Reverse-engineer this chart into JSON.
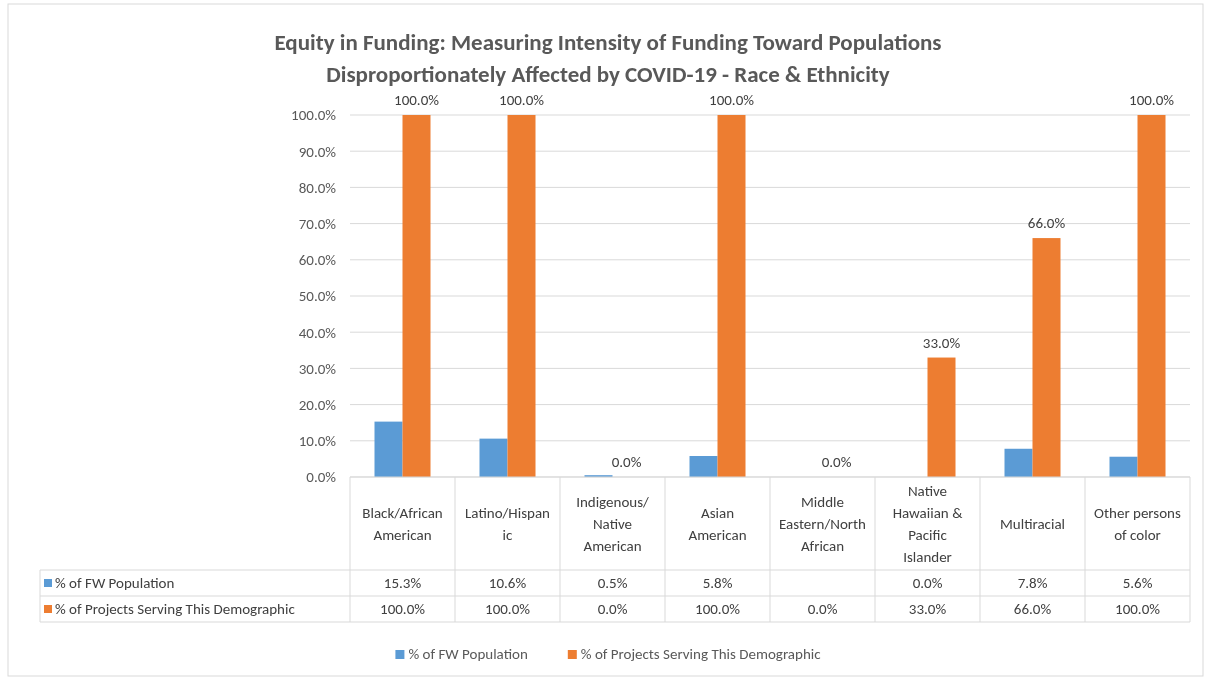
{
  "chart_data": {
    "type": "bar",
    "title": "Equity in Funding: Measuring Intensity of Funding Toward Populations Disproportionately Affected by COVID-19 - Race & Ethnicity",
    "categories": [
      "Black/African American",
      "Latino/Hispanic",
      "Indigenous/ Native American",
      "Asian American",
      "Middle Eastern/North African",
      "Native Hawaiian & Pacific Islander",
      "Multiracial",
      "Other persons of color"
    ],
    "series": [
      {
        "name": "% of FW Population",
        "color": "#5b9bd5",
        "values": [
          15.3,
          10.6,
          0.5,
          5.8,
          null,
          0.0,
          7.8,
          5.6
        ],
        "value_labels": [
          "15.3%",
          "10.6%",
          "0.5%",
          "5.8%",
          null,
          "0.0%",
          "7.8%",
          "5.6%"
        ]
      },
      {
        "name": "% of Projects Serving This Demographic",
        "color": "#ed7d31",
        "values": [
          100,
          100,
          0,
          100,
          0,
          33,
          66,
          100
        ],
        "value_labels": [
          "100.0%",
          "100.0%",
          "0.0%",
          "100.0%",
          "0.0%",
          "33.0%",
          "66.0%",
          "100.0%"
        ],
        "data_labels": true
      }
    ],
    "ylim": [
      0,
      100
    ],
    "yticks": [
      {
        "value": 0,
        "label": "0.0%"
      },
      {
        "value": 10,
        "label": "10.0%"
      },
      {
        "value": 20,
        "label": "20.0%"
      },
      {
        "value": 30,
        "label": "30.0%"
      },
      {
        "value": 40,
        "label": "40.0%"
      },
      {
        "value": 50,
        "label": "50.0%"
      },
      {
        "value": 60,
        "label": "60.0%"
      },
      {
        "value": 70,
        "label": "70.0%"
      },
      {
        "value": 80,
        "label": "80.0%"
      },
      {
        "value": 90,
        "label": "90.0%"
      },
      {
        "value": 100,
        "label": "100.0%"
      }
    ],
    "grid": "y",
    "legend": "bottom",
    "data_labels": true
  }
}
